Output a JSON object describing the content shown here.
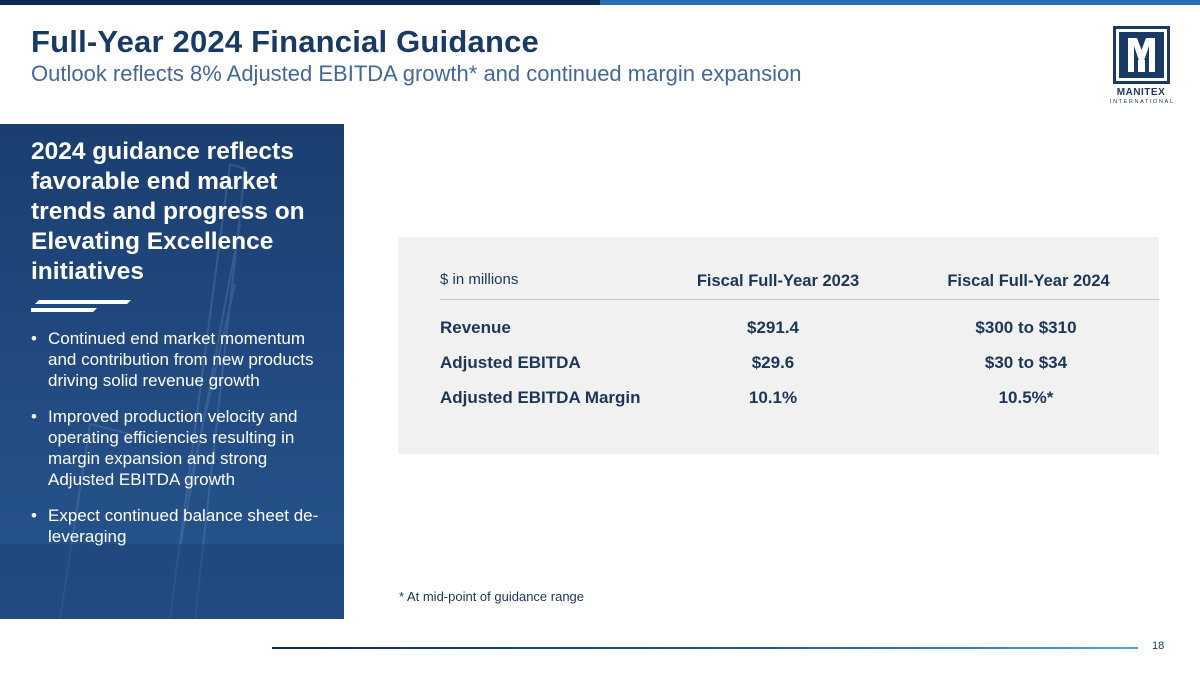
{
  "header": {
    "title": "Full-Year 2024 Financial Guidance",
    "subtitle": "Outlook reflects 8% Adjusted EBITDA growth* and continued margin expansion"
  },
  "logo": {
    "name": "MANITEX",
    "sub": "INTERNATIONAL",
    "icon": "manitex-m-logo"
  },
  "colors": {
    "navy": "#1a3a66",
    "panel_blue": "#21497f",
    "accent_blue": "#2a6fb8",
    "table_bg": "#f1f1f1"
  },
  "left_panel": {
    "heading": "2024 guidance reflects favorable end market trends and progress on Elevating Excellence initiatives",
    "bullets": [
      "Continued end market momentum and contribution from new products driving solid revenue growth",
      "Improved production velocity and operating efficiencies resulting in margin expansion and strong Adjusted EBITDA growth",
      "Expect continued balance sheet de-leveraging"
    ]
  },
  "table": {
    "units": "$ in millions",
    "columns": [
      "Fiscal Full-Year 2023",
      "Fiscal Full-Year 2024"
    ],
    "rows": [
      {
        "label": "Revenue",
        "fy2023": "$291.4",
        "fy2024": "$300 to $310"
      },
      {
        "label": "Adjusted EBITDA",
        "fy2023": "$29.6",
        "fy2024": "$30 to $34"
      },
      {
        "label": "Adjusted EBITDA Margin",
        "fy2023": "10.1%",
        "fy2024": "10.5%*"
      }
    ]
  },
  "footnote": "* At mid-point of guidance range",
  "page_number": "18"
}
